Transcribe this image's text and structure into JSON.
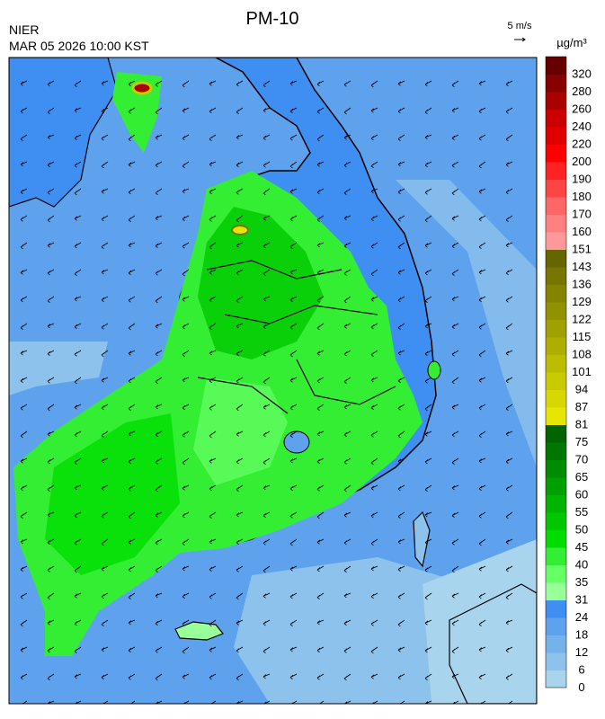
{
  "title": "PM-10",
  "source": "NIER",
  "timestamp": "MAR 05 2026 10:00 KST",
  "wind_scale": "5 m/s",
  "colorbar": {
    "unit": "µg/m³",
    "levels": [
      0,
      6,
      12,
      18,
      24,
      31,
      35,
      40,
      45,
      50,
      55,
      60,
      65,
      70,
      75,
      81,
      87,
      94,
      101,
      108,
      115,
      122,
      129,
      136,
      143,
      151,
      160,
      170,
      180,
      190,
      200,
      220,
      240,
      260,
      280,
      320
    ],
    "colors": [
      "#a8d4ee",
      "#8cc2ec",
      "#74b2ec",
      "#5ea2ee",
      "#3f8ff2",
      "#99ff99",
      "#66ff66",
      "#33ee33",
      "#00dd00",
      "#00c800",
      "#00b400",
      "#00a000",
      "#008c00",
      "#007800",
      "#006400",
      "#e6e600",
      "#d8d800",
      "#caca00",
      "#bcbc00",
      "#aeae00",
      "#a0a000",
      "#929200",
      "#848400",
      "#767600",
      "#666600",
      "#ff9999",
      "#ff8080",
      "#ff6666",
      "#ff4444",
      "#ff2222",
      "#ff0000",
      "#e00000",
      "#cc0000",
      "#aa0000",
      "#880000",
      "#660000"
    ]
  }
}
